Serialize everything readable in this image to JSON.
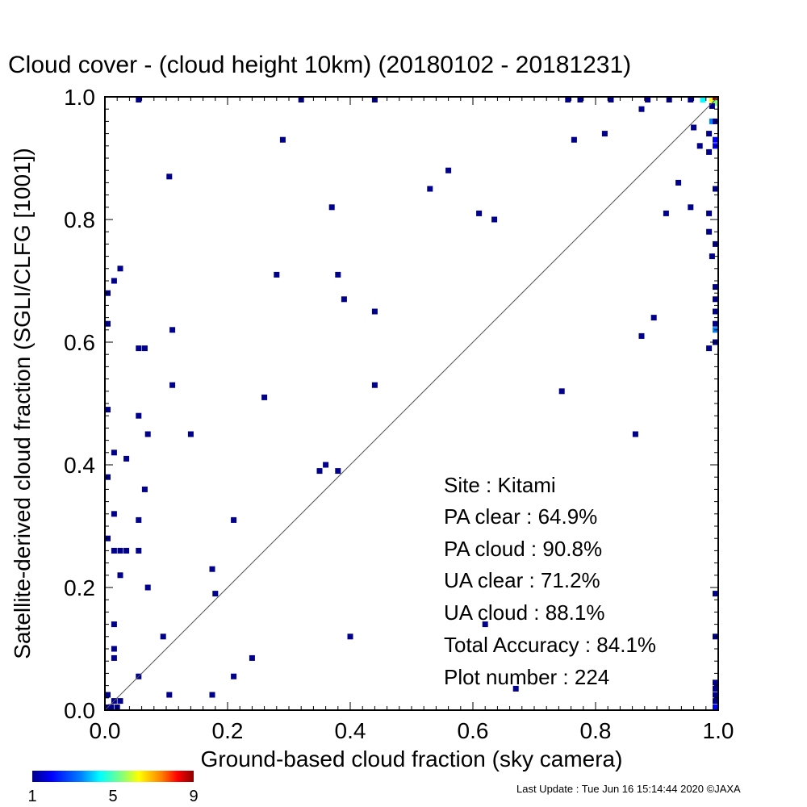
{
  "chart_data": {
    "type": "heatmap",
    "title": "Cloud cover - (cloud height 10km)  (20180102 - 20181231)",
    "xlabel": "Ground-based cloud fraction (sky camera)",
    "ylabel": "Satellite-derived cloud fraction (SGLI/CLFG [1001])",
    "xlim": [
      0,
      1
    ],
    "ylim": [
      0,
      1
    ],
    "x_ticks": [
      "0.0",
      "0.2",
      "0.4",
      "0.6",
      "0.8",
      "1.0"
    ],
    "y_ticks": [
      "0.0",
      "0.2",
      "0.4",
      "0.6",
      "0.8",
      "1.0"
    ],
    "grid": false,
    "reference_line": "y = x",
    "colorbar": {
      "min": 1,
      "max": 9,
      "tick_labels": [
        "1",
        "5",
        "9"
      ],
      "colors": [
        "#00008b",
        "#0000ff",
        "#0080ff",
        "#00ffff",
        "#80ff80",
        "#ffff00",
        "#ff8000",
        "#ff0000",
        "#8b0000"
      ]
    },
    "points": [
      [
        0.055,
        1.0,
        1
      ],
      [
        0.32,
        1.0,
        1
      ],
      [
        0.44,
        1.0,
        1
      ],
      [
        0.755,
        1.0,
        1
      ],
      [
        0.775,
        1.0,
        1
      ],
      [
        0.825,
        1.0,
        1
      ],
      [
        0.885,
        1.0,
        1
      ],
      [
        0.92,
        1.0,
        1
      ],
      [
        0.955,
        1.0,
        1
      ],
      [
        0.975,
        1.0,
        4
      ],
      [
        0.99,
        1.0,
        6
      ],
      [
        1.0,
        1.0,
        9
      ],
      [
        1.0,
        0.99,
        5
      ],
      [
        0.99,
        0.985,
        1
      ],
      [
        0.875,
        0.98,
        1
      ],
      [
        0.99,
        0.96,
        3
      ],
      [
        1.0,
        0.96,
        1
      ],
      [
        0.96,
        0.95,
        1
      ],
      [
        0.815,
        0.94,
        1
      ],
      [
        0.985,
        0.94,
        1
      ],
      [
        1.0,
        0.93,
        2
      ],
      [
        0.29,
        0.93,
        1
      ],
      [
        0.765,
        0.93,
        1
      ],
      [
        0.97,
        0.92,
        1
      ],
      [
        1.0,
        0.92,
        2
      ],
      [
        0.985,
        0.91,
        1
      ],
      [
        0.56,
        0.88,
        1
      ],
      [
        0.105,
        0.87,
        1
      ],
      [
        0.935,
        0.86,
        1
      ],
      [
        0.53,
        0.85,
        1
      ],
      [
        1.0,
        0.85,
        1
      ],
      [
        0.37,
        0.82,
        1
      ],
      [
        0.955,
        0.82,
        1
      ],
      [
        0.61,
        0.81,
        1
      ],
      [
        0.915,
        0.81,
        1
      ],
      [
        0.985,
        0.81,
        1
      ],
      [
        0.635,
        0.8,
        1
      ],
      [
        0.985,
        0.78,
        1
      ],
      [
        1.0,
        0.76,
        1
      ],
      [
        0.99,
        0.74,
        1
      ],
      [
        0.025,
        0.72,
        1
      ],
      [
        0.28,
        0.71,
        1
      ],
      [
        0.38,
        0.71,
        1
      ],
      [
        0.015,
        0.7,
        1
      ],
      [
        1.0,
        0.69,
        1
      ],
      [
        0.0,
        0.68,
        1
      ],
      [
        0.39,
        0.67,
        1
      ],
      [
        1.0,
        0.67,
        1
      ],
      [
        0.44,
        0.65,
        1
      ],
      [
        1.0,
        0.65,
        1
      ],
      [
        0.895,
        0.64,
        1
      ],
      [
        0.0,
        0.63,
        1
      ],
      [
        1.0,
        0.63,
        1
      ],
      [
        0.11,
        0.62,
        1
      ],
      [
        1.0,
        0.62,
        3
      ],
      [
        0.875,
        0.61,
        1
      ],
      [
        0.055,
        0.59,
        1
      ],
      [
        0.065,
        0.59,
        1
      ],
      [
        0.985,
        0.59,
        1
      ],
      [
        1.0,
        0.6,
        1
      ],
      [
        0.11,
        0.53,
        1
      ],
      [
        0.44,
        0.53,
        1
      ],
      [
        0.745,
        0.52,
        1
      ],
      [
        0.26,
        0.51,
        1
      ],
      [
        0.0,
        0.49,
        1
      ],
      [
        0.055,
        0.48,
        1
      ],
      [
        0.07,
        0.45,
        1
      ],
      [
        0.14,
        0.45,
        1
      ],
      [
        0.865,
        0.45,
        1
      ],
      [
        0.015,
        0.42,
        1
      ],
      [
        0.035,
        0.41,
        1
      ],
      [
        0.36,
        0.4,
        1
      ],
      [
        0.35,
        0.39,
        1
      ],
      [
        0.38,
        0.39,
        1
      ],
      [
        0.0,
        0.38,
        1
      ],
      [
        0.065,
        0.36,
        1
      ],
      [
        0.015,
        0.32,
        1
      ],
      [
        0.055,
        0.31,
        1
      ],
      [
        0.21,
        0.31,
        1
      ],
      [
        0.0,
        0.28,
        1
      ],
      [
        0.015,
        0.26,
        1
      ],
      [
        0.025,
        0.26,
        1
      ],
      [
        0.035,
        0.26,
        1
      ],
      [
        0.055,
        0.26,
        1
      ],
      [
        0.175,
        0.23,
        1
      ],
      [
        0.025,
        0.22,
        1
      ],
      [
        0.07,
        0.2,
        1
      ],
      [
        0.18,
        0.19,
        1
      ],
      [
        1.0,
        0.19,
        1
      ],
      [
        0.015,
        0.14,
        1
      ],
      [
        0.62,
        0.14,
        1
      ],
      [
        0.095,
        0.12,
        1
      ],
      [
        0.4,
        0.12,
        1
      ],
      [
        1.0,
        0.12,
        1
      ],
      [
        0.015,
        0.1,
        1
      ],
      [
        0.015,
        0.085,
        1
      ],
      [
        0.24,
        0.085,
        1
      ],
      [
        0.055,
        0.055,
        1
      ],
      [
        0.21,
        0.055,
        1
      ],
      [
        1.0,
        0.045,
        1
      ],
      [
        1.0,
        0.035,
        1
      ],
      [
        0.67,
        0.035,
        1
      ],
      [
        0.0,
        0.025,
        1
      ],
      [
        0.105,
        0.025,
        1
      ],
      [
        0.175,
        0.025,
        1
      ],
      [
        1.0,
        0.025,
        1
      ],
      [
        0.015,
        0.015,
        1
      ],
      [
        0.025,
        0.015,
        1
      ],
      [
        1.0,
        0.015,
        1
      ],
      [
        0.01,
        0.005,
        1
      ],
      [
        1.0,
        0.005,
        2
      ],
      [
        0.0,
        0.0,
        1
      ],
      [
        0.02,
        0.0,
        1
      ]
    ]
  },
  "stats": {
    "site": "Site : Kitami",
    "pa_clear": "PA clear :  64.9%",
    "pa_cloud": "PA cloud :  90.8%",
    "ua_clear": "UA clear :  71.2%",
    "ua_cloud": "UA cloud :  88.1%",
    "total_accuracy": "Total Accuracy :  84.1%",
    "plot_number": "Plot number :       224"
  },
  "footer": "Last Update : Tue Jun 16 15:14:44 2020  ©JAXA"
}
